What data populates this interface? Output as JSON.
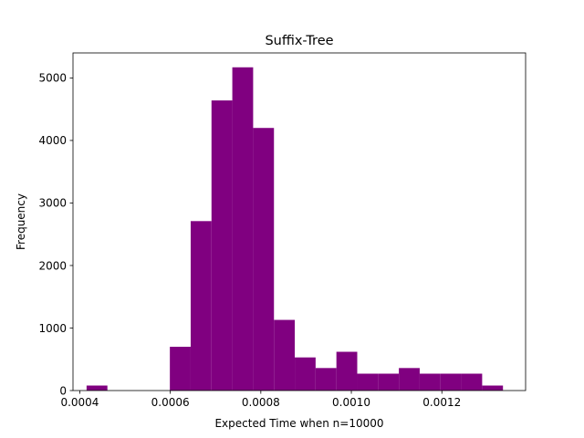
{
  "chart_data": {
    "type": "bar",
    "title": "Suffix-Tree",
    "xlabel": "Expected Time when n=10000",
    "ylabel": "Frequency",
    "bar_color": "#800080",
    "xlim": [
      0.000385,
      0.001385
    ],
    "ylim": [
      0,
      5400
    ],
    "bin_edges": [
      0.000415,
      0.000461,
      0.000507,
      0.000553,
      0.000599,
      0.000645,
      0.000691,
      0.000737,
      0.000783,
      0.000829,
      0.000875,
      0.000921,
      0.000967,
      0.001013,
      0.001059,
      0.001105,
      0.001151,
      0.001197,
      0.001243,
      0.001289,
      0.001335
    ],
    "values": [
      80,
      0,
      0,
      0,
      700,
      2710,
      4640,
      5170,
      4200,
      1130,
      530,
      360,
      620,
      270,
      270,
      360,
      270,
      270,
      270,
      80
    ],
    "x_ticks": [
      {
        "value": 0.0004,
        "label": "0.0004"
      },
      {
        "value": 0.0006,
        "label": "0.0006"
      },
      {
        "value": 0.0008,
        "label": "0.0008"
      },
      {
        "value": 0.001,
        "label": "0.0010"
      },
      {
        "value": 0.0012,
        "label": "0.0012"
      }
    ],
    "y_ticks": [
      {
        "value": 0,
        "label": "0"
      },
      {
        "value": 1000,
        "label": "1000"
      },
      {
        "value": 2000,
        "label": "2000"
      },
      {
        "value": 3000,
        "label": "3000"
      },
      {
        "value": 4000,
        "label": "4000"
      },
      {
        "value": 5000,
        "label": "5000"
      }
    ],
    "grid": false,
    "legend": "none"
  }
}
